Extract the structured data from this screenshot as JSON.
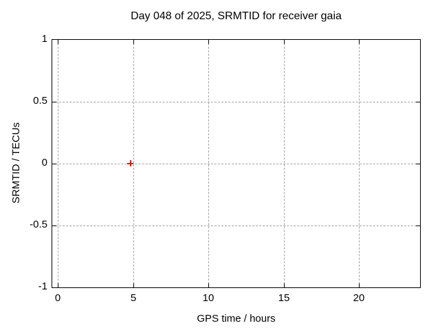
{
  "chart_data": {
    "type": "scatter",
    "title": "Day 048 of 2025, SRMTID for receiver gaia",
    "xlabel": "GPS time / hours",
    "ylabel": "SRMTID / TECUs",
    "xlim": [
      0,
      24
    ],
    "ylim": [
      -1,
      1
    ],
    "xticks": [
      "0",
      "5",
      "10",
      "15",
      "20"
    ],
    "yticks": [
      "1",
      "0.5",
      "0",
      "-0.5",
      "-1"
    ],
    "grid": true,
    "grid_color": "#a0a0a0",
    "axis_color": "#000000",
    "background_color": "#ffffff",
    "legend": "none",
    "series": [
      {
        "name": "SRMTID",
        "marker": "plus",
        "color": "#ff0000",
        "points": [
          {
            "x": 4.8,
            "y": 0
          }
        ]
      }
    ]
  }
}
